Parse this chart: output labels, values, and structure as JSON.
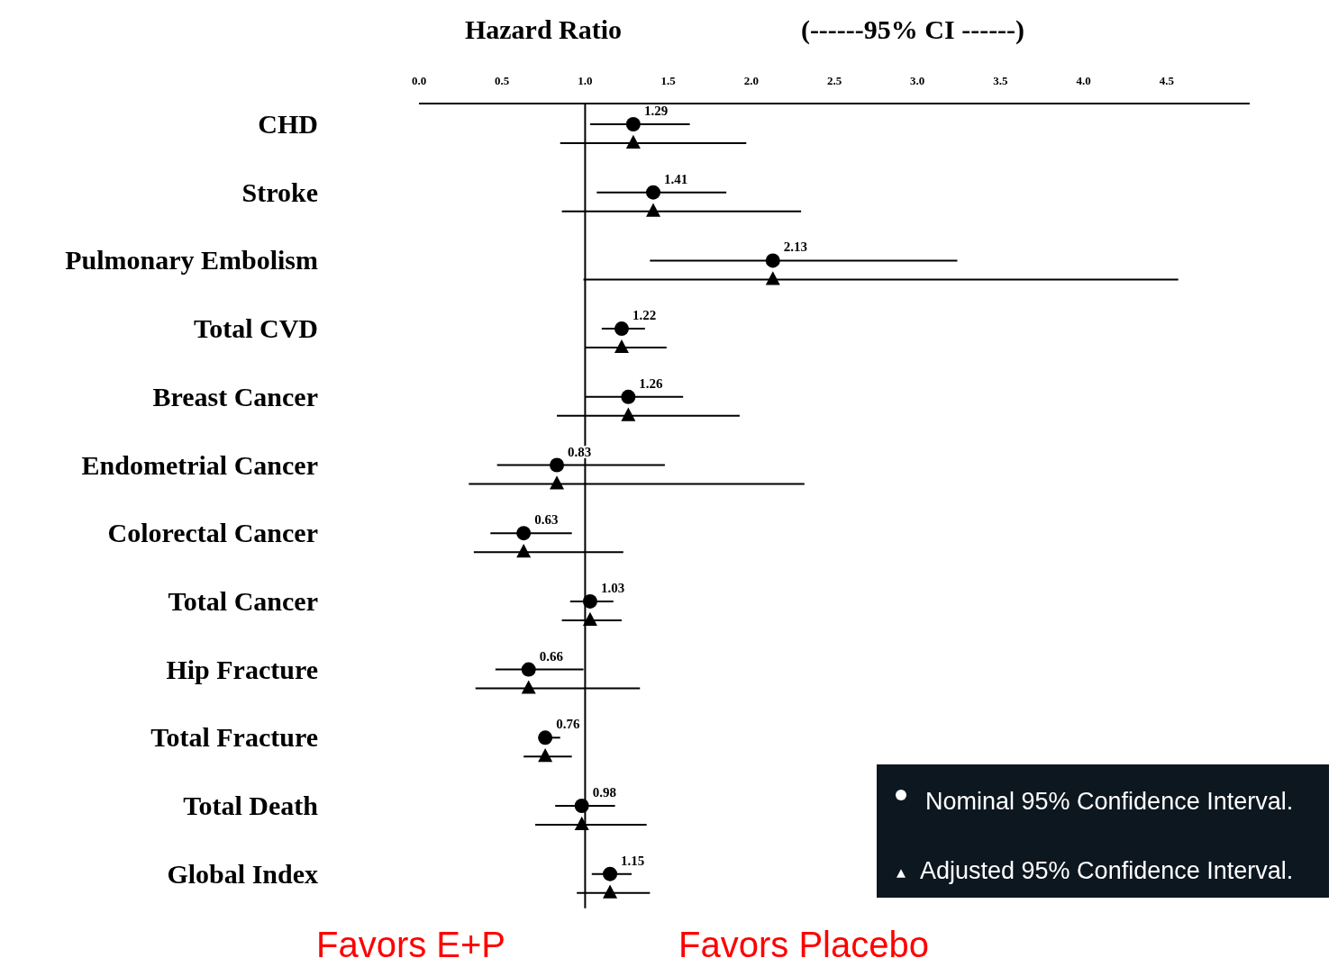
{
  "chart_data": {
    "type": "scatter",
    "orientation": "horizontal",
    "title": "Hazard Ratio",
    "subtitle": "(------95% CI ------)",
    "categories": [
      "CHD",
      "Stroke",
      "Pulmonary Embolism",
      "Total CVD",
      "Breast Cancer",
      "Endometrial Cancer",
      "Colorectal Cancer",
      "Total Cancer",
      "Hip Fracture",
      "Total Fracture",
      "Total Death",
      "Global Index"
    ],
    "series": [
      {
        "name": "Nominal 95% Confidence Interval.",
        "color": "#000000",
        "marker": "circle",
        "values": [
          1.29,
          1.41,
          2.13,
          1.22,
          1.26,
          0.83,
          0.63,
          1.03,
          0.66,
          0.76,
          0.98,
          1.15
        ],
        "errors": [
          [
            1.03,
            1.63
          ],
          [
            1.07,
            1.85
          ],
          [
            1.39,
            3.24
          ],
          [
            1.1,
            1.36
          ],
          [
            1.0,
            1.59
          ],
          [
            0.47,
            1.48
          ],
          [
            0.43,
            0.92
          ],
          [
            0.91,
            1.17
          ],
          [
            0.46,
            0.99
          ],
          [
            0.72,
            0.85
          ],
          [
            0.82,
            1.18
          ],
          [
            1.04,
            1.28
          ]
        ],
        "value_labels": [
          "1.29",
          "1.41",
          "2.13",
          "1.22",
          "1.26",
          "0.83",
          "0.63",
          "1.03",
          "0.66",
          "0.76",
          "0.98",
          "1.15"
        ]
      },
      {
        "name": "Adjusted 95% Confidence Interval.",
        "color": "#000000",
        "marker": "triangle",
        "values": [
          1.29,
          1.41,
          2.13,
          1.22,
          1.26,
          0.83,
          0.63,
          1.03,
          0.66,
          0.76,
          0.98,
          1.15
        ],
        "errors": [
          [
            0.85,
            1.97
          ],
          [
            0.86,
            2.3
          ],
          [
            0.99,
            4.57
          ],
          [
            1.0,
            1.49
          ],
          [
            0.83,
            1.93
          ],
          [
            0.3,
            2.32
          ],
          [
            0.33,
            1.23
          ],
          [
            0.86,
            1.22
          ],
          [
            0.34,
            1.33
          ],
          [
            0.63,
            0.92
          ],
          [
            0.7,
            1.37
          ],
          [
            0.95,
            1.39
          ]
        ]
      }
    ],
    "xlim": [
      0,
      5
    ],
    "xticks": [
      {
        "value": 0,
        "label": "0.0"
      },
      {
        "value": 0.5,
        "label": "0.5"
      },
      {
        "value": 1,
        "label": "1.0"
      },
      {
        "value": 1.5,
        "label": "1.5"
      },
      {
        "value": 2,
        "label": "2.0"
      },
      {
        "value": 2.5,
        "label": "2.5"
      },
      {
        "value": 3,
        "label": "3.0"
      },
      {
        "value": 3.5,
        "label": "3.5"
      },
      {
        "value": 4,
        "label": "4.0"
      },
      {
        "value": 4.5,
        "label": "4.5"
      }
    ],
    "ref_lines": [
      {
        "axis": "x",
        "value": 1,
        "color": "#000000"
      }
    ],
    "grid": false,
    "legend": "bottom right",
    "annotations": [
      "Favors E+P",
      "Favors Placebo"
    ]
  }
}
